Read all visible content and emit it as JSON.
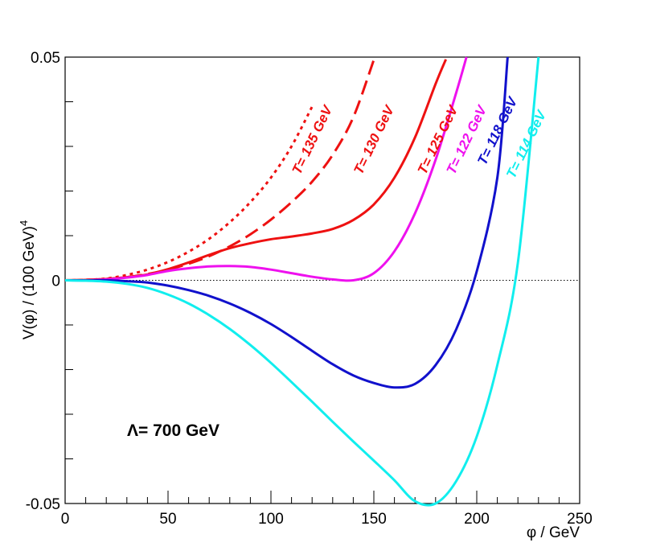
{
  "chart_data": {
    "type": "line",
    "title": "",
    "xlabel": "φ / GeV",
    "ylabel": "V(φ) / (100 GeV)",
    "ylabel_exponent": "4",
    "xlim": [
      0,
      250
    ],
    "ylim": [
      -0.05,
      0.05
    ],
    "x_ticks": [
      0,
      50,
      100,
      150,
      200,
      250
    ],
    "x_tick_labels": [
      "0",
      "50",
      "100",
      "150",
      "200",
      "250"
    ],
    "y_tick_labels": [
      "0.05",
      "0",
      "-0.05"
    ],
    "y_ticks": [
      0.05,
      0,
      -0.05
    ],
    "annotation": "Λ= 700 GeV",
    "reference_line": {
      "y": 0,
      "style": "dotted"
    },
    "series": [
      {
        "name": "T= 135 GeV",
        "color": "#ee1111",
        "dash": "dotted",
        "x": [
          0,
          10,
          20,
          30,
          40,
          50,
          60,
          70,
          80,
          90,
          100,
          110,
          120
        ],
        "y": [
          0,
          0.0001,
          0.0004,
          0.0012,
          0.0024,
          0.0041,
          0.0064,
          0.0093,
          0.013,
          0.0175,
          0.023,
          0.03,
          0.0389
        ]
      },
      {
        "name": "T= 130 GeV",
        "color": "#ee1111",
        "dash": "dashed",
        "x": [
          0,
          10,
          20,
          30,
          40,
          50,
          60,
          70,
          80,
          90,
          100,
          110,
          120,
          130,
          140,
          150
        ],
        "y": [
          0,
          0.0001,
          0.0003,
          0.0007,
          0.0014,
          0.0024,
          0.0037,
          0.0054,
          0.0076,
          0.0103,
          0.0136,
          0.0175,
          0.0221,
          0.0281,
          0.0365,
          0.0494
        ]
      },
      {
        "name": "T= 125 GeV",
        "color": "#ee1111",
        "dash": "solid",
        "x": [
          0,
          10,
          20,
          30,
          40,
          50,
          60,
          70,
          80,
          90,
          100,
          110,
          120,
          130,
          140,
          150,
          160,
          170,
          180,
          185
        ],
        "y": [
          0,
          0.0001,
          0.0003,
          0.0007,
          0.0013,
          0.0025,
          0.004,
          0.0057,
          0.0072,
          0.0083,
          0.0092,
          0.0098,
          0.0105,
          0.0115,
          0.0135,
          0.017,
          0.023,
          0.032,
          0.044,
          0.0495
        ]
      },
      {
        "name": "T= 122 GeV",
        "color": "#ee11ee",
        "dash": "solid",
        "x": [
          0,
          10,
          20,
          30,
          40,
          50,
          60,
          70,
          80,
          90,
          100,
          110,
          120,
          130,
          140,
          150,
          160,
          170,
          180,
          190,
          195
        ],
        "y": [
          0,
          0.0,
          0.0002,
          0.0006,
          0.0012,
          0.0021,
          0.0027,
          0.0031,
          0.0032,
          0.003,
          0.0024,
          0.0016,
          0.0008,
          0.0002,
          0.0,
          0.0016,
          0.0065,
          0.015,
          0.027,
          0.042,
          0.05
        ]
      },
      {
        "name": "T= 118 GeV",
        "color": "#1111cc",
        "dash": "solid",
        "x": [
          0,
          10,
          20,
          30,
          40,
          50,
          60,
          70,
          80,
          90,
          100,
          110,
          120,
          130,
          140,
          150,
          160,
          170,
          180,
          190,
          200,
          210,
          215
        ],
        "y": [
          0,
          0.0,
          0.0,
          -0.0002,
          -0.0005,
          -0.0012,
          -0.0022,
          -0.0035,
          -0.0052,
          -0.0073,
          -0.0098,
          -0.0127,
          -0.0158,
          -0.0188,
          -0.0213,
          -0.023,
          -0.024,
          -0.0232,
          -0.019,
          -0.011,
          0.002,
          0.023,
          0.05
        ]
      },
      {
        "name": "T= 114 GeV",
        "color": "#11eeee",
        "dash": "solid",
        "x": [
          0,
          10,
          20,
          30,
          40,
          50,
          60,
          70,
          80,
          90,
          100,
          110,
          120,
          130,
          140,
          150,
          160,
          170,
          180,
          190,
          200,
          210,
          220,
          230
        ],
        "y": [
          0,
          -0.0001,
          -0.0003,
          -0.0008,
          -0.0017,
          -0.0032,
          -0.0052,
          -0.0078,
          -0.0109,
          -0.0145,
          -0.0185,
          -0.0228,
          -0.0272,
          -0.0317,
          -0.0361,
          -0.0404,
          -0.0448,
          -0.0495,
          -0.05,
          -0.045,
          -0.035,
          -0.019,
          0.004,
          0.05
        ]
      }
    ]
  }
}
